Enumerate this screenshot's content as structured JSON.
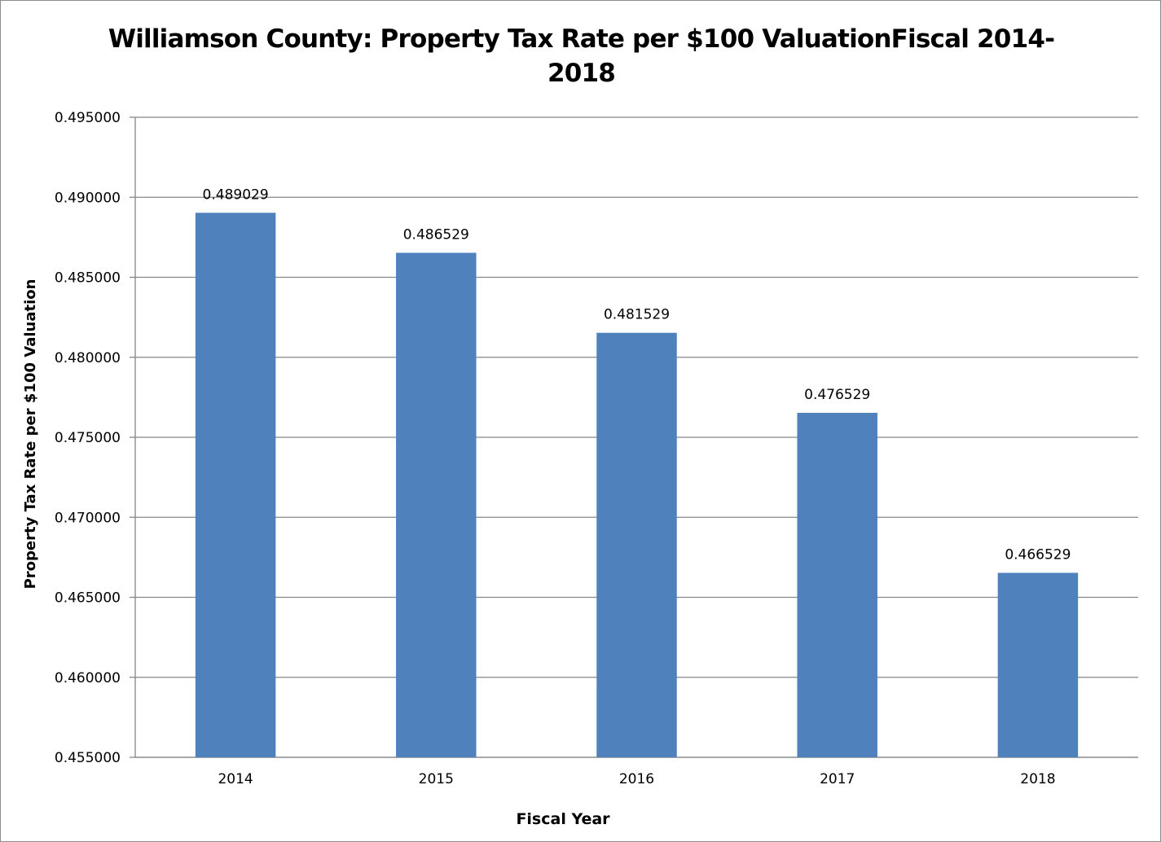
{
  "chart_data": {
    "type": "bar",
    "title_lines": [
      "Williamson County: Property Tax Rate per $100 ValuationFiscal 2014-",
      "2018"
    ],
    "xlabel": "Fiscal Year",
    "ylabel": "Property Tax Rate per $100 Valuation",
    "categories": [
      "2014",
      "2015",
      "2016",
      "2017",
      "2018"
    ],
    "values": [
      0.489029,
      0.486529,
      0.481529,
      0.476529,
      0.466529
    ],
    "value_labels": [
      "0.489029",
      "0.486529",
      "0.481529",
      "0.476529",
      "0.466529"
    ],
    "ylim": [
      0.455,
      0.495
    ],
    "y_ticks": [
      0.455,
      0.46,
      0.465,
      0.47,
      0.475,
      0.48,
      0.485,
      0.49,
      0.495
    ],
    "y_tick_labels": [
      "0.455000",
      "0.460000",
      "0.465000",
      "0.470000",
      "0.475000",
      "0.480000",
      "0.485000",
      "0.490000",
      "0.495000"
    ],
    "grid": true,
    "legend": "none",
    "bar_color": "#4f81bd",
    "gridline_color": "#868686"
  }
}
